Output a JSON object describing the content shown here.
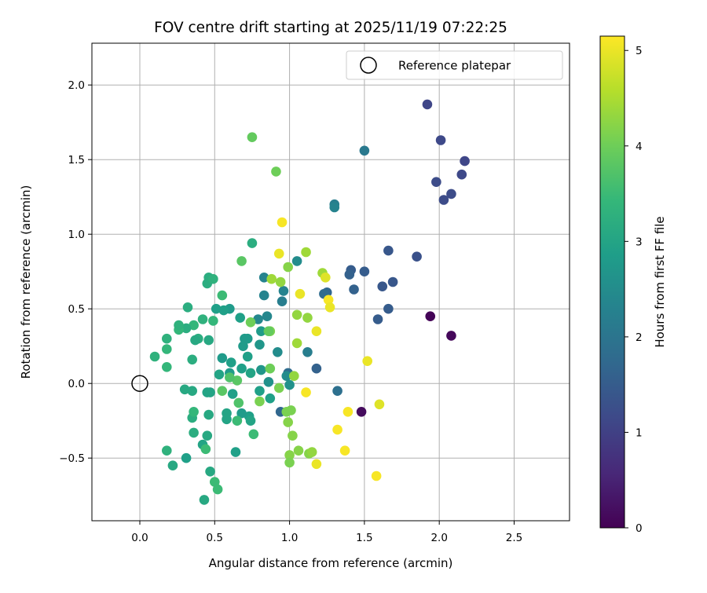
{
  "chart_data": {
    "type": "scatter",
    "title": "FOV centre drift starting at 2025/11/19 07:22:25",
    "xlabel": "Angular distance from reference (arcmin)",
    "ylabel": "Rotation from reference (arcmin)",
    "xlim": [
      -0.32,
      2.87
    ],
    "ylim": [
      -0.92,
      2.28
    ],
    "xticks": [
      0.0,
      0.5,
      1.0,
      1.5,
      2.0,
      2.5
    ],
    "xtick_labels": [
      "0.0",
      "0.5",
      "1.0",
      "1.5",
      "2.0",
      "2.5"
    ],
    "yticks": [
      -0.5,
      0.0,
      0.5,
      1.0,
      1.5,
      2.0
    ],
    "ytick_labels": [
      "−0.5",
      "0.0",
      "0.5",
      "1.0",
      "1.5",
      "2.0"
    ],
    "grid": true,
    "legend": {
      "position": "top-right",
      "entries": [
        "Reference platepar"
      ]
    },
    "reference_point": {
      "x": 0.0,
      "y": 0.0
    },
    "colorbar": {
      "label": "Hours from first FF file",
      "min": 0,
      "max": 5.15,
      "ticks": [
        0,
        1,
        2,
        3,
        4,
        5
      ],
      "tick_labels": [
        "0",
        "1",
        "2",
        "3",
        "4",
        "5"
      ],
      "colormap": "viridis",
      "colors": [
        "#440154",
        "#482878",
        "#3e4989",
        "#31688e",
        "#26828e",
        "#1f9e89",
        "#35b779",
        "#6ece58",
        "#b5de2b",
        "#fde725"
      ]
    },
    "points": [
      {
        "x": 1.94,
        "y": 0.45,
        "h": 0.05
      },
      {
        "x": 2.08,
        "y": 0.32,
        "h": 0.1
      },
      {
        "x": 1.48,
        "y": -0.19,
        "h": 0.15
      },
      {
        "x": 1.92,
        "y": 1.87,
        "h": 1.1
      },
      {
        "x": 2.01,
        "y": 1.63,
        "h": 1.15
      },
      {
        "x": 2.17,
        "y": 1.49,
        "h": 1.1
      },
      {
        "x": 1.98,
        "y": 1.35,
        "h": 1.2
      },
      {
        "x": 2.15,
        "y": 1.4,
        "h": 1.15
      },
      {
        "x": 2.03,
        "y": 1.23,
        "h": 1.2
      },
      {
        "x": 2.08,
        "y": 1.27,
        "h": 1.2
      },
      {
        "x": 1.85,
        "y": 0.85,
        "h": 1.3
      },
      {
        "x": 1.66,
        "y": 0.89,
        "h": 1.4
      },
      {
        "x": 1.69,
        "y": 0.68,
        "h": 1.4
      },
      {
        "x": 1.62,
        "y": 0.65,
        "h": 1.4
      },
      {
        "x": 1.66,
        "y": 0.5,
        "h": 1.5
      },
      {
        "x": 1.59,
        "y": 0.43,
        "h": 1.5
      },
      {
        "x": 1.5,
        "y": 0.75,
        "h": 1.5
      },
      {
        "x": 1.41,
        "y": 0.76,
        "h": 1.5
      },
      {
        "x": 1.4,
        "y": 0.73,
        "h": 1.6
      },
      {
        "x": 1.43,
        "y": 0.63,
        "h": 1.6
      },
      {
        "x": 1.18,
        "y": 0.1,
        "h": 1.6
      },
      {
        "x": 1.25,
        "y": 0.61,
        "h": 1.7
      },
      {
        "x": 1.23,
        "y": 0.6,
        "h": 1.8
      },
      {
        "x": 0.94,
        "y": -0.19,
        "h": 1.7
      },
      {
        "x": 0.99,
        "y": 0.07,
        "h": 1.8
      },
      {
        "x": 1.32,
        "y": -0.05,
        "h": 1.9
      },
      {
        "x": 1.5,
        "y": 1.56,
        "h": 2.1
      },
      {
        "x": 1.3,
        "y": 1.2,
        "h": 2.2
      },
      {
        "x": 1.3,
        "y": 1.18,
        "h": 2.3
      },
      {
        "x": 1.12,
        "y": 0.21,
        "h": 2.2
      },
      {
        "x": 0.95,
        "y": 0.55,
        "h": 2.2
      },
      {
        "x": 0.96,
        "y": 0.62,
        "h": 2.3
      },
      {
        "x": 0.83,
        "y": 0.71,
        "h": 2.3
      },
      {
        "x": 0.83,
        "y": 0.59,
        "h": 2.3
      },
      {
        "x": 0.79,
        "y": 0.43,
        "h": 2.4
      },
      {
        "x": 0.85,
        "y": 0.45,
        "h": 2.4
      },
      {
        "x": 1.05,
        "y": 0.82,
        "h": 2.5
      },
      {
        "x": 0.92,
        "y": 0.21,
        "h": 2.5
      },
      {
        "x": 0.98,
        "y": 0.05,
        "h": 2.5
      },
      {
        "x": 1.0,
        "y": -0.01,
        "h": 2.6
      },
      {
        "x": 0.86,
        "y": 0.01,
        "h": 2.6
      },
      {
        "x": 0.81,
        "y": 0.09,
        "h": 2.7
      },
      {
        "x": 0.8,
        "y": 0.26,
        "h": 2.7
      },
      {
        "x": 0.81,
        "y": 0.35,
        "h": 2.8
      },
      {
        "x": 0.72,
        "y": 0.3,
        "h": 2.8
      },
      {
        "x": 0.7,
        "y": 0.3,
        "h": 2.8
      },
      {
        "x": 0.69,
        "y": 0.25,
        "h": 2.8
      },
      {
        "x": 0.67,
        "y": 0.44,
        "h": 2.9
      },
      {
        "x": 0.6,
        "y": 0.5,
        "h": 2.8
      },
      {
        "x": 0.56,
        "y": 0.49,
        "h": 2.9
      },
      {
        "x": 0.51,
        "y": 0.5,
        "h": 2.9
      },
      {
        "x": 0.55,
        "y": 0.17,
        "h": 2.8
      },
      {
        "x": 0.6,
        "y": 0.07,
        "h": 2.8
      },
      {
        "x": 0.61,
        "y": 0.14,
        "h": 2.9
      },
      {
        "x": 0.68,
        "y": 0.1,
        "h": 2.9
      },
      {
        "x": 0.72,
        "y": 0.18,
        "h": 2.9
      },
      {
        "x": 0.74,
        "y": 0.07,
        "h": 3.0
      },
      {
        "x": 0.8,
        "y": -0.05,
        "h": 2.9
      },
      {
        "x": 0.87,
        "y": -0.1,
        "h": 2.9
      },
      {
        "x": 0.73,
        "y": -0.22,
        "h": 2.9
      },
      {
        "x": 0.68,
        "y": -0.2,
        "h": 2.8
      },
      {
        "x": 0.74,
        "y": -0.25,
        "h": 3.0
      },
      {
        "x": 0.62,
        "y": -0.07,
        "h": 2.9
      },
      {
        "x": 0.58,
        "y": -0.2,
        "h": 3.0
      },
      {
        "x": 0.58,
        "y": -0.24,
        "h": 3.0
      },
      {
        "x": 0.64,
        "y": -0.46,
        "h": 2.9
      },
      {
        "x": 0.53,
        "y": 0.06,
        "h": 3.0
      },
      {
        "x": 0.45,
        "y": -0.06,
        "h": 3.0
      },
      {
        "x": 0.47,
        "y": -0.06,
        "h": 3.0
      },
      {
        "x": 0.46,
        "y": -0.21,
        "h": 3.1
      },
      {
        "x": 0.45,
        "y": -0.35,
        "h": 3.1
      },
      {
        "x": 0.42,
        "y": -0.41,
        "h": 3.0
      },
      {
        "x": 0.47,
        "y": -0.59,
        "h": 3.1
      },
      {
        "x": 0.43,
        "y": -0.78,
        "h": 3.1
      },
      {
        "x": 0.31,
        "y": -0.5,
        "h": 2.9
      },
      {
        "x": 0.22,
        "y": -0.55,
        "h": 3.1
      },
      {
        "x": 0.36,
        "y": -0.33,
        "h": 3.2
      },
      {
        "x": 0.35,
        "y": -0.23,
        "h": 3.2
      },
      {
        "x": 0.35,
        "y": -0.05,
        "h": 3.1
      },
      {
        "x": 0.3,
        "y": -0.04,
        "h": 3.1
      },
      {
        "x": 0.35,
        "y": 0.16,
        "h": 3.2
      },
      {
        "x": 0.39,
        "y": 0.3,
        "h": 3.2
      },
      {
        "x": 0.37,
        "y": 0.29,
        "h": 3.1
      },
      {
        "x": 0.46,
        "y": 0.29,
        "h": 3.1
      },
      {
        "x": 0.42,
        "y": 0.43,
        "h": 3.3
      },
      {
        "x": 0.36,
        "y": 0.39,
        "h": 3.4
      },
      {
        "x": 0.31,
        "y": 0.37,
        "h": 3.2
      },
      {
        "x": 0.26,
        "y": 0.36,
        "h": 3.4
      },
      {
        "x": 0.26,
        "y": 0.39,
        "h": 3.3
      },
      {
        "x": 0.32,
        "y": 0.51,
        "h": 3.2
      },
      {
        "x": 0.18,
        "y": 0.3,
        "h": 3.3
      },
      {
        "x": 0.18,
        "y": 0.23,
        "h": 3.4
      },
      {
        "x": 0.18,
        "y": 0.11,
        "h": 3.4
      },
      {
        "x": 0.1,
        "y": 0.18,
        "h": 3.3
      },
      {
        "x": 0.45,
        "y": 0.67,
        "h": 3.2
      },
      {
        "x": 0.46,
        "y": 0.71,
        "h": 3.2
      },
      {
        "x": 0.49,
        "y": 0.7,
        "h": 3.3
      },
      {
        "x": 0.49,
        "y": 0.42,
        "h": 3.4
      },
      {
        "x": 0.55,
        "y": 0.59,
        "h": 3.5
      },
      {
        "x": 0.75,
        "y": 0.94,
        "h": 3.2
      },
      {
        "x": 0.36,
        "y": -0.19,
        "h": 3.4
      },
      {
        "x": 0.18,
        "y": -0.45,
        "h": 3.3
      },
      {
        "x": 0.44,
        "y": -0.44,
        "h": 3.5
      },
      {
        "x": 0.5,
        "y": -0.66,
        "h": 3.5
      },
      {
        "x": 0.52,
        "y": -0.71,
        "h": 3.5
      },
      {
        "x": 0.65,
        "y": -0.25,
        "h": 3.5
      },
      {
        "x": 0.76,
        "y": -0.34,
        "h": 3.5
      },
      {
        "x": 0.65,
        "y": 0.02,
        "h": 3.8
      },
      {
        "x": 0.6,
        "y": 0.04,
        "h": 3.7
      },
      {
        "x": 0.66,
        "y": -0.13,
        "h": 3.7
      },
      {
        "x": 0.55,
        "y": -0.05,
        "h": 3.8
      },
      {
        "x": 0.68,
        "y": 0.82,
        "h": 3.8
      },
      {
        "x": 0.75,
        "y": 1.65,
        "h": 3.9
      },
      {
        "x": 0.91,
        "y": 1.42,
        "h": 4.0
      },
      {
        "x": 0.74,
        "y": 0.41,
        "h": 4.0
      },
      {
        "x": 0.87,
        "y": 0.35,
        "h": 4.1
      },
      {
        "x": 0.86,
        "y": 0.35,
        "h": 3.9
      },
      {
        "x": 0.8,
        "y": -0.12,
        "h": 4.1
      },
      {
        "x": 0.87,
        "y": 0.1,
        "h": 4.0
      },
      {
        "x": 0.93,
        "y": -0.03,
        "h": 4.1
      },
      {
        "x": 0.98,
        "y": -0.19,
        "h": 4.1
      },
      {
        "x": 0.99,
        "y": -0.26,
        "h": 4.2
      },
      {
        "x": 1.01,
        "y": -0.18,
        "h": 4.1
      },
      {
        "x": 1.02,
        "y": -0.35,
        "h": 4.2
      },
      {
        "x": 1.0,
        "y": -0.48,
        "h": 4.2
      },
      {
        "x": 1.0,
        "y": -0.53,
        "h": 4.1
      },
      {
        "x": 1.06,
        "y": -0.45,
        "h": 4.2
      },
      {
        "x": 1.13,
        "y": -0.47,
        "h": 4.2
      },
      {
        "x": 1.15,
        "y": -0.46,
        "h": 4.3
      },
      {
        "x": 1.03,
        "y": 0.05,
        "h": 4.3
      },
      {
        "x": 1.05,
        "y": 0.27,
        "h": 4.4
      },
      {
        "x": 1.05,
        "y": 0.46,
        "h": 4.3
      },
      {
        "x": 0.94,
        "y": 0.68,
        "h": 4.3
      },
      {
        "x": 0.99,
        "y": 0.78,
        "h": 4.2
      },
      {
        "x": 0.88,
        "y": 0.7,
        "h": 4.4
      },
      {
        "x": 1.11,
        "y": 0.88,
        "h": 4.4
      },
      {
        "x": 1.22,
        "y": 0.74,
        "h": 4.4
      },
      {
        "x": 1.12,
        "y": 0.44,
        "h": 4.3
      },
      {
        "x": 1.24,
        "y": 0.71,
        "h": 4.9
      },
      {
        "x": 0.93,
        "y": 0.87,
        "h": 5.0
      },
      {
        "x": 0.95,
        "y": 1.08,
        "h": 5.1
      },
      {
        "x": 1.07,
        "y": 0.6,
        "h": 5.0
      },
      {
        "x": 1.18,
        "y": 0.35,
        "h": 5.0
      },
      {
        "x": 1.26,
        "y": 0.56,
        "h": 5.1
      },
      {
        "x": 1.27,
        "y": 0.51,
        "h": 5.0
      },
      {
        "x": 1.11,
        "y": -0.06,
        "h": 5.1
      },
      {
        "x": 1.18,
        "y": -0.54,
        "h": 5.0
      },
      {
        "x": 1.32,
        "y": -0.31,
        "h": 5.1
      },
      {
        "x": 1.39,
        "y": -0.19,
        "h": 5.1
      },
      {
        "x": 1.37,
        "y": -0.45,
        "h": 5.1
      },
      {
        "x": 1.52,
        "y": 0.15,
        "h": 5.0
      },
      {
        "x": 1.6,
        "y": -0.14,
        "h": 4.9
      },
      {
        "x": 1.58,
        "y": -0.62,
        "h": 5.1
      }
    ]
  }
}
